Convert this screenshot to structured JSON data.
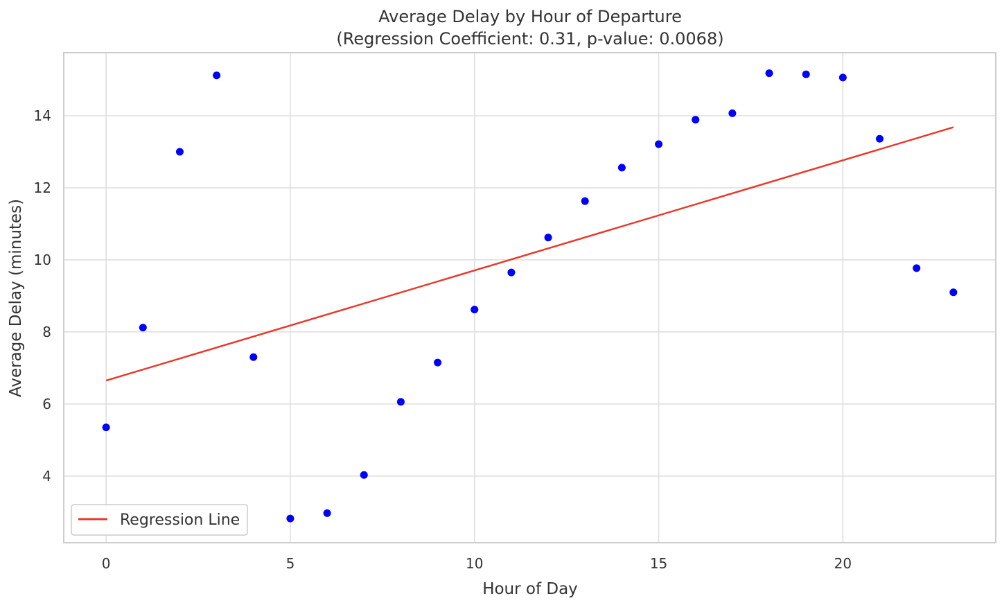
{
  "chart_data": {
    "type": "scatter",
    "title": "Average Delay by Hour of Departure",
    "subtitle": "(Regression Coefficient: 0.31, p-value: 0.0068)",
    "xlabel": "Hour of Day",
    "ylabel": "Average Delay (minutes)",
    "xlim": [
      -1.15,
      24.15
    ],
    "ylim": [
      2.15,
      15.75
    ],
    "x_ticks": [
      0,
      5,
      10,
      15,
      20
    ],
    "y_ticks": [
      4,
      6,
      8,
      10,
      12,
      14
    ],
    "grid": true,
    "legend_position": "lower-left",
    "series": [
      {
        "type": "scatter",
        "color": "#0000ff",
        "x": [
          0,
          1,
          2,
          3,
          4,
          5,
          6,
          7,
          8,
          9,
          10,
          11,
          12,
          13,
          14,
          15,
          16,
          17,
          18,
          19,
          20,
          21,
          22,
          23
        ],
        "y": [
          5.35,
          8.12,
          13.0,
          15.12,
          7.3,
          2.82,
          2.97,
          4.03,
          6.06,
          7.15,
          8.62,
          9.65,
          10.62,
          11.63,
          12.56,
          13.21,
          13.89,
          14.07,
          15.18,
          15.15,
          15.06,
          13.36,
          9.77,
          9.1
        ]
      },
      {
        "name": "Regression Line",
        "type": "line",
        "color": "#e8392b",
        "x": [
          0,
          23
        ],
        "y": [
          6.65,
          13.68
        ]
      }
    ]
  }
}
